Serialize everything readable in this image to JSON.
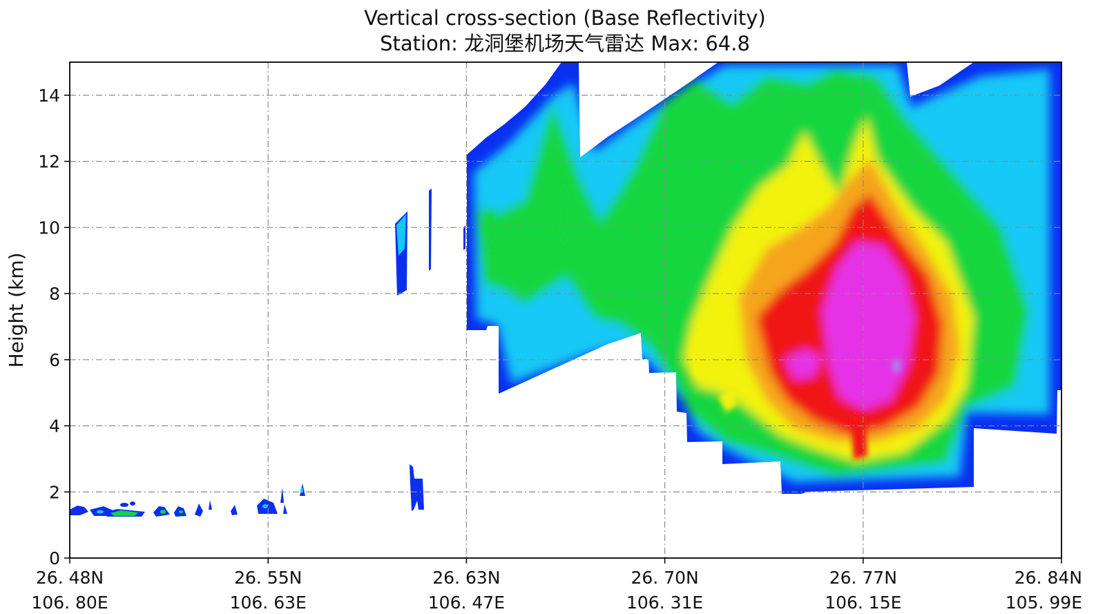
{
  "chart_data": {
    "type": "heatmap",
    "title": "Vertical cross-section (Base Reflectivity)",
    "subtitle": "Station: 龙洞堡机场天气雷达  Max: 64.8",
    "ylabel": "Height (km)",
    "ylim": [
      0,
      15
    ],
    "yticks": [
      0,
      2,
      4,
      6,
      8,
      10,
      12,
      14
    ],
    "xticks": [
      {
        "lat": "26. 48N",
        "lon": "106. 80E"
      },
      {
        "lat": "26. 55N",
        "lon": "106. 63E"
      },
      {
        "lat": "26. 63N",
        "lon": "106. 47E"
      },
      {
        "lat": "26. 70N",
        "lon": "106. 31E"
      },
      {
        "lat": "26. 77N",
        "lon": "106. 15E"
      },
      {
        "lat": "26. 84N",
        "lon": "105. 99E"
      }
    ],
    "grid": true,
    "max_value": 64.8,
    "colors": {
      "blue": "#0a2ff0",
      "cyan": "#14c8f5",
      "green": "#12d640",
      "yellow": "#f2f20c",
      "orange": "#f5a51e",
      "red": "#f01414",
      "magenta": "#e632e6",
      "violet": "#b478f0"
    }
  }
}
